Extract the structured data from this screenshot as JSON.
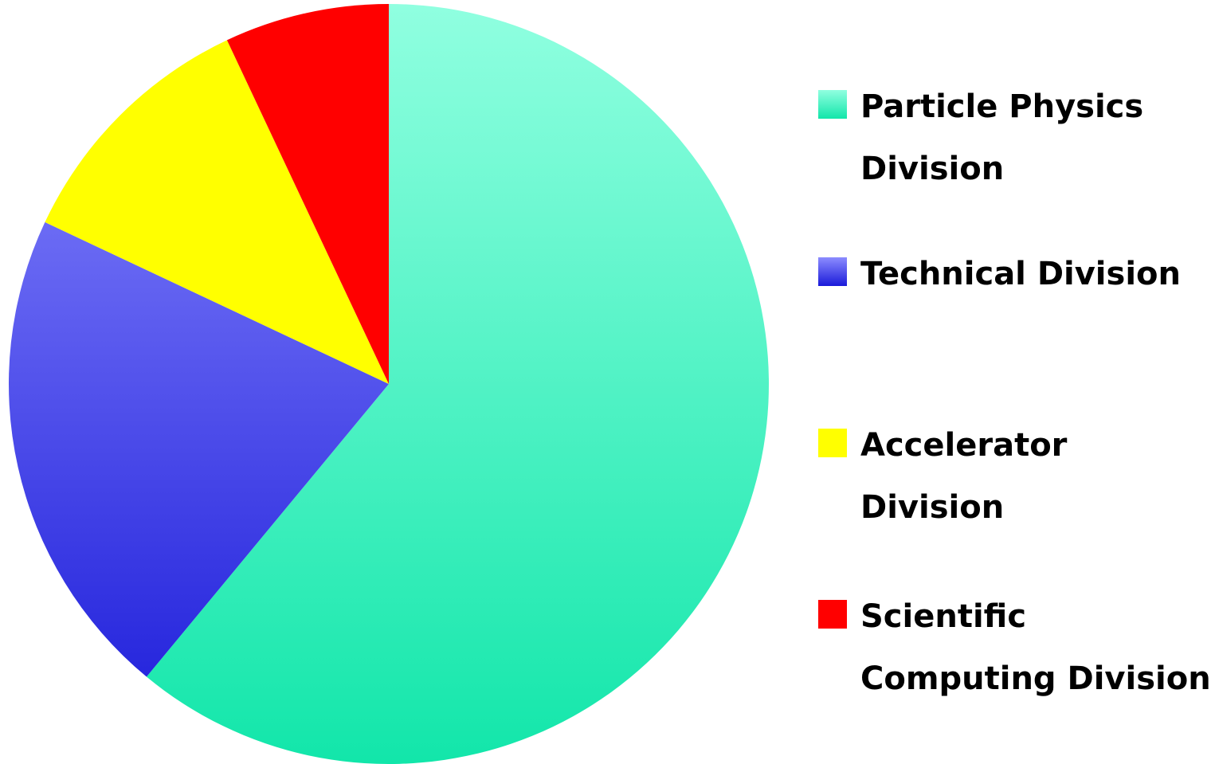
{
  "chart_data": {
    "type": "pie",
    "categories": [
      "Particle Physics Division",
      "Technical Division",
      "Accelerator Division",
      "Scientific Computing Division"
    ],
    "values": [
      61,
      21,
      11,
      7
    ],
    "colors": [
      [
        "#90ffe0",
        "#12e6aa"
      ],
      [
        "#8c8cff",
        "#1a1ad9"
      ],
      [
        "#ffff00",
        "#ffff00"
      ],
      [
        "#ff0000",
        "#ff0000"
      ]
    ],
    "legend": "right"
  }
}
